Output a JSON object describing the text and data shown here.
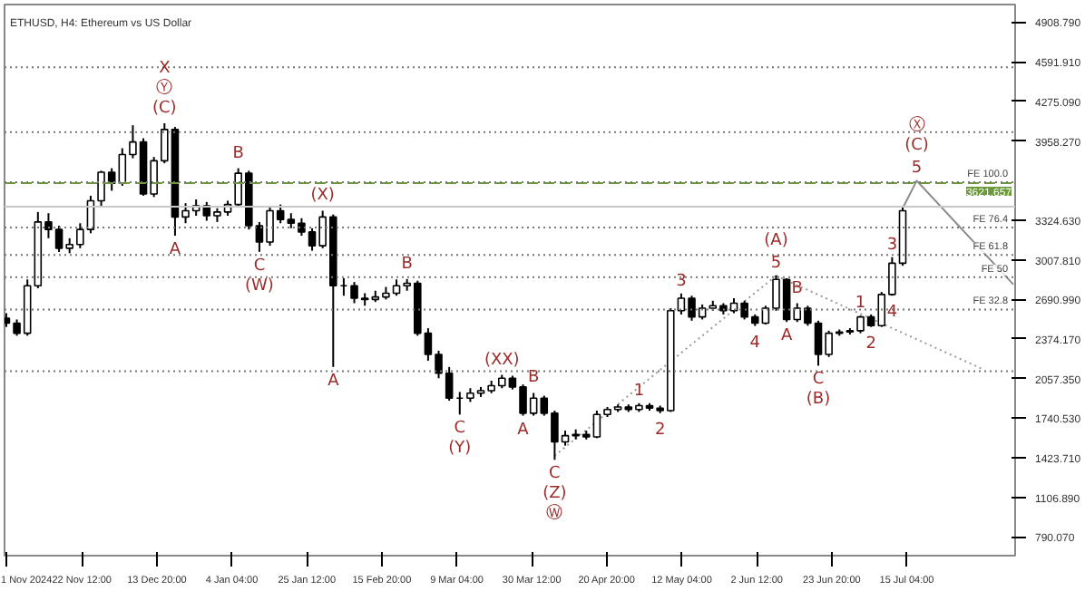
{
  "chart_data": {
    "type": "candlestick",
    "title": "ETHUSD, H4:  Ethereum vs US Dollar",
    "x": [
      "2024-11-01",
      "2024-11-04",
      "2024-11-07",
      "2024-11-10",
      "2024-11-13",
      "2024-11-16",
      "2024-11-19",
      "2024-11-22",
      "2024-11-25",
      "2024-11-28",
      "2024-12-01",
      "2024-12-04",
      "2024-12-07",
      "2024-12-10",
      "2024-12-13",
      "2024-12-16",
      "2024-12-19",
      "2024-12-22",
      "2024-12-25",
      "2024-12-28",
      "2024-12-31",
      "2025-01-03",
      "2025-01-06",
      "2025-01-09",
      "2025-01-12",
      "2025-01-15",
      "2025-01-18",
      "2025-01-21",
      "2025-01-24",
      "2025-01-27",
      "2025-01-30",
      "2025-02-02",
      "2025-02-05",
      "2025-02-08",
      "2025-02-11",
      "2025-02-14",
      "2025-02-17",
      "2025-02-20",
      "2025-02-23",
      "2025-02-26",
      "2025-03-01",
      "2025-03-04",
      "2025-03-07",
      "2025-03-10",
      "2025-03-13",
      "2025-03-16",
      "2025-03-19",
      "2025-03-22",
      "2025-03-25",
      "2025-03-28",
      "2025-03-31",
      "2025-04-03",
      "2025-04-06",
      "2025-04-09",
      "2025-04-12",
      "2025-04-15",
      "2025-04-18",
      "2025-04-21",
      "2025-04-24",
      "2025-04-27",
      "2025-04-30",
      "2025-05-03",
      "2025-05-06",
      "2025-05-09",
      "2025-05-12",
      "2025-05-15",
      "2025-05-18",
      "2025-05-21",
      "2025-05-24",
      "2025-05-27",
      "2025-05-30",
      "2025-06-02",
      "2025-06-05",
      "2025-06-08",
      "2025-06-11",
      "2025-06-14",
      "2025-06-17",
      "2025-06-20",
      "2025-06-23",
      "2025-06-26",
      "2025-06-29",
      "2025-07-02",
      "2025-07-05",
      "2025-07-08",
      "2025-07-11",
      "2025-07-14"
    ],
    "ohlc": [
      [
        2540,
        2580,
        2470,
        2500
      ],
      [
        2500,
        2530,
        2400,
        2420
      ],
      [
        2420,
        2850,
        2400,
        2800
      ],
      [
        2800,
        3390,
        2780,
        3310
      ],
      [
        3310,
        3380,
        3180,
        3250
      ],
      [
        3250,
        3280,
        3070,
        3100
      ],
      [
        3100,
        3180,
        3060,
        3130
      ],
      [
        3130,
        3300,
        3100,
        3250
      ],
      [
        3250,
        3520,
        3220,
        3480
      ],
      [
        3480,
        3720,
        3440,
        3708
      ],
      [
        3708,
        3740,
        3560,
        3620
      ],
      [
        3620,
        3900,
        3600,
        3850
      ],
      [
        3850,
        4084,
        3820,
        3950
      ],
      [
        3950,
        3980,
        3520,
        3534
      ],
      [
        3534,
        3830,
        3510,
        3800
      ],
      [
        3800,
        4100,
        3780,
        4050
      ],
      [
        4050,
        4070,
        3200,
        3350
      ],
      [
        3350,
        3460,
        3300,
        3400
      ],
      [
        3400,
        3490,
        3360,
        3440
      ],
      [
        3440,
        3470,
        3320,
        3360
      ],
      [
        3360,
        3420,
        3310,
        3390
      ],
      [
        3390,
        3480,
        3360,
        3450
      ],
      [
        3450,
        3740,
        3430,
        3700
      ],
      [
        3700,
        3720,
        3250,
        3280
      ],
      [
        3280,
        3310,
        3071,
        3150
      ],
      [
        3150,
        3430,
        3120,
        3400
      ],
      [
        3400,
        3450,
        3300,
        3330
      ],
      [
        3330,
        3380,
        3260,
        3300
      ],
      [
        3300,
        3340,
        3200,
        3230
      ],
      [
        3230,
        3260,
        3080,
        3120
      ],
      [
        3120,
        3400,
        3100,
        3350
      ],
      [
        3350,
        3370,
        2150,
        2800
      ],
      [
        2800,
        2860,
        2720,
        2800
      ],
      [
        2800,
        2830,
        2660,
        2700
      ],
      [
        2700,
        2740,
        2640,
        2690
      ],
      [
        2690,
        2760,
        2670,
        2710
      ],
      [
        2710,
        2790,
        2690,
        2740
      ],
      [
        2740,
        2850,
        2720,
        2800
      ],
      [
        2800,
        2854,
        2760,
        2820
      ],
      [
        2820,
        2840,
        2400,
        2420
      ],
      [
        2420,
        2460,
        2200,
        2250
      ],
      [
        2250,
        2280,
        2060,
        2100
      ],
      [
        2100,
        2150,
        1880,
        1900
      ],
      [
        1900,
        1950,
        1769,
        1900
      ],
      [
        1900,
        1980,
        1870,
        1940
      ],
      [
        1940,
        1990,
        1910,
        1960
      ],
      [
        1960,
        2040,
        1940,
        2000
      ],
      [
        2000,
        2087,
        1980,
        2060
      ],
      [
        2060,
        2080,
        1970,
        1990
      ],
      [
        1990,
        2010,
        1760,
        1780
      ],
      [
        1780,
        1942,
        1760,
        1900
      ],
      [
        1900,
        1920,
        1760,
        1780
      ],
      [
        1780,
        1800,
        1407,
        1550
      ],
      [
        1550,
        1640,
        1520,
        1600
      ],
      [
        1600,
        1650,
        1570,
        1610
      ],
      [
        1610,
        1640,
        1570,
        1590
      ],
      [
        1590,
        1800,
        1580,
        1770
      ],
      [
        1770,
        1830,
        1750,
        1810
      ],
      [
        1810,
        1850,
        1790,
        1830
      ],
      [
        1830,
        1850,
        1790,
        1810
      ],
      [
        1810,
        1860,
        1790,
        1840
      ],
      [
        1840,
        1860,
        1800,
        1820
      ],
      [
        1820,
        1840,
        1780,
        1800
      ],
      [
        1800,
        2620,
        1790,
        2600
      ],
      [
        2600,
        2738,
        2570,
        2700
      ],
      [
        2700,
        2720,
        2520,
        2550
      ],
      [
        2550,
        2650,
        2530,
        2620
      ],
      [
        2620,
        2680,
        2600,
        2640
      ],
      [
        2640,
        2660,
        2570,
        2600
      ],
      [
        2600,
        2700,
        2580,
        2660
      ],
      [
        2660,
        2680,
        2530,
        2550
      ],
      [
        2550,
        2570,
        2478,
        2500
      ],
      [
        2500,
        2640,
        2490,
        2620
      ],
      [
        2620,
        2883,
        2600,
        2850
      ],
      [
        2850,
        2860,
        2510,
        2530
      ],
      [
        2530,
        2660,
        2510,
        2620
      ],
      [
        2620,
        2640,
        2480,
        2500
      ],
      [
        2500,
        2520,
        2160,
        2250
      ],
      [
        2250,
        2440,
        2230,
        2420
      ],
      [
        2420,
        2450,
        2400,
        2430
      ],
      [
        2430,
        2460,
        2410,
        2440
      ],
      [
        2440,
        2560,
        2420,
        2550
      ],
      [
        2550,
        2570,
        2470,
        2480
      ],
      [
        2480,
        2750,
        2470,
        2730
      ],
      [
        2730,
        3028,
        2720,
        2980
      ],
      [
        2980,
        3440,
        2960,
        3400
      ]
    ],
    "series": [
      {
        "type": "line",
        "color": "#999999",
        "line_style": "dotted",
        "x": [
          "2025-04-06",
          "2025-06-08"
        ],
        "values": [
          1440,
          2880
        ]
      },
      {
        "type": "line",
        "color": "#999999",
        "line_style": "dotted",
        "x": [
          "2025-06-08",
          "2025-08-06"
        ],
        "values": [
          2880,
          2130
        ]
      },
      {
        "type": "line",
        "color": "#8c8c8c",
        "line_style": "solid",
        "x": [
          "2025-07-14",
          "2025-07-18",
          "2025-08-14T12:00"
        ],
        "values": [
          3420,
          3640,
          2810
        ]
      }
    ],
    "xlim": [
      "2024-10-31T12:00",
      "2025-08-15"
    ],
    "xticks": [
      {
        "value": "2024-11-01",
        "label": "1 Nov 2024"
      },
      {
        "value": "2024-11-22T12:00",
        "label": "22 Nov 12:00"
      },
      {
        "value": "2024-12-13T20:00",
        "label": "13 Dec 20:00"
      },
      {
        "value": "2025-01-04T04:00",
        "label": "4 Jan 04:00"
      },
      {
        "value": "2025-01-25T12:00",
        "label": "25 Jan 12:00"
      },
      {
        "value": "2025-02-15T20:00",
        "label": "15 Feb 20:00"
      },
      {
        "value": "2025-03-09T04:00",
        "label": "9 Mar 04:00"
      },
      {
        "value": "2025-03-30T12:00",
        "label": "30 Mar 12:00"
      },
      {
        "value": "2025-04-20T20:00",
        "label": "20 Apr 20:00"
      },
      {
        "value": "2025-05-12T04:00",
        "label": "12 May 04:00"
      },
      {
        "value": "2025-06-02T12:00",
        "label": "2 Jun 12:00"
      },
      {
        "value": "2025-06-23T20:00",
        "label": "23 Jun 20:00"
      },
      {
        "value": "2025-07-15T04:00",
        "label": "15 Jul 04:00"
      }
    ],
    "ylim": [
      640,
      5050
    ],
    "yticks": [
      {
        "value": 790.07,
        "label": "790.070"
      },
      {
        "value": 1106.89,
        "label": "1106.890"
      },
      {
        "value": 1423.71,
        "label": "1423.710"
      },
      {
        "value": 1740.53,
        "label": "1740.530"
      },
      {
        "value": 2057.35,
        "label": "2057.350"
      },
      {
        "value": 2374.17,
        "label": "2374.170"
      },
      {
        "value": 2690.99,
        "label": "2690.990"
      },
      {
        "value": 3007.81,
        "label": "3007.810"
      },
      {
        "value": 3324.63,
        "label": "3324.630"
      },
      {
        "value": 3958.27,
        "label": "3958.270"
      },
      {
        "value": 4275.09,
        "label": "4275.090"
      },
      {
        "value": 4591.91,
        "label": "4591.910"
      },
      {
        "value": 4908.79,
        "label": "4908.790"
      }
    ],
    "ref_lines": [
      {
        "axis": "y",
        "value": 3433,
        "color": "#c8c8c8",
        "line_style": "solid"
      },
      {
        "axis": "y",
        "value": 3621.657,
        "label": "3621.657",
        "color": "#6b9a3a",
        "line_style": "dashed"
      },
      {
        "axis": "y",
        "value": 3628,
        "label": "FE 100.0",
        "color": "#777777",
        "line_style": "dotted"
      },
      {
        "axis": "y",
        "value": 3266,
        "label": "FE 76.4",
        "color": "#777777",
        "line_style": "dotted"
      },
      {
        "axis": "y",
        "value": 3046,
        "label": "FE 61.8",
        "color": "#777777",
        "line_style": "dotted"
      },
      {
        "axis": "y",
        "value": 2868,
        "label": "FE 50",
        "color": "#777777",
        "line_style": "dotted"
      },
      {
        "axis": "y",
        "value": 2610,
        "label": "FE 32.8",
        "color": "#777777",
        "line_style": "dotted"
      },
      {
        "axis": "y",
        "value": 2116,
        "color": "#777777",
        "line_style": "dotted"
      },
      {
        "axis": "y",
        "value": 4030,
        "color": "#777777",
        "line_style": "dotted"
      },
      {
        "axis": "y",
        "value": 4547,
        "color": "#777777",
        "line_style": "dotted"
      }
    ],
    "annotations": [
      {
        "text": "X",
        "x": "2024-12-16",
        "y": 4100
      },
      {
        "text": "Ⓨ",
        "x": "2024-12-16",
        "y": 4100
      },
      {
        "text": "(C)",
        "x": "2024-12-16",
        "y": 4100
      },
      {
        "text": "A",
        "x": "2024-12-19",
        "y": 3200
      },
      {
        "text": "B",
        "x": "2025-01-06",
        "y": 3740
      },
      {
        "text": "C",
        "x": "2025-01-12",
        "y": 3071
      },
      {
        "text": "(W)",
        "x": "2025-01-12",
        "y": 3071
      },
      {
        "text": "(X)",
        "x": "2025-01-30",
        "y": 3400
      },
      {
        "text": "A",
        "x": "2025-02-02",
        "y": 2150
      },
      {
        "text": "B",
        "x": "2025-02-23",
        "y": 2854
      },
      {
        "text": "C",
        "x": "2025-03-10",
        "y": 1769
      },
      {
        "text": "(Y)",
        "x": "2025-03-10",
        "y": 1769
      },
      {
        "text": "(XX)",
        "x": "2025-03-22",
        "y": 2087
      },
      {
        "text": "A",
        "x": "2025-03-28",
        "y": 1760
      },
      {
        "text": "B",
        "x": "2025-03-31",
        "y": 1942
      },
      {
        "text": "C",
        "x": "2025-04-06",
        "y": 1407
      },
      {
        "text": "(Z)",
        "x": "2025-04-06",
        "y": 1407
      },
      {
        "text": "Ⓦ",
        "x": "2025-04-06",
        "y": 1407
      },
      {
        "text": "1",
        "x": "2025-04-30",
        "y": 1860
      },
      {
        "text": "2",
        "x": "2025-05-06",
        "y": 1780
      },
      {
        "text": "3",
        "x": "2025-05-12",
        "y": 2738
      },
      {
        "text": "4",
        "x": "2025-06-02",
        "y": 2478
      },
      {
        "text": "(A)",
        "x": "2025-06-08",
        "y": 2883
      },
      {
        "text": "5",
        "x": "2025-06-08",
        "y": 2883
      },
      {
        "text": "A",
        "x": "2025-06-11",
        "y": 2510
      },
      {
        "text": "B",
        "x": "2025-06-14",
        "y": 2660
      },
      {
        "text": "C",
        "x": "2025-06-20",
        "y": 2160
      },
      {
        "text": "(B)",
        "x": "2025-06-20",
        "y": 2160
      },
      {
        "text": "1",
        "x": "2025-07-02",
        "y": 2560
      },
      {
        "text": "2",
        "x": "2025-07-05",
        "y": 2470
      },
      {
        "text": "3",
        "x": "2025-07-11",
        "y": 3028
      },
      {
        "text": "4",
        "x": "2025-07-11",
        "y": 2720
      },
      {
        "text": "Ⓧ",
        "x": "2025-07-18",
        "y": 3640
      },
      {
        "text": "(C)",
        "x": "2025-07-18",
        "y": 3640
      },
      {
        "text": "5",
        "x": "2025-07-18",
        "y": 3640
      }
    ]
  }
}
